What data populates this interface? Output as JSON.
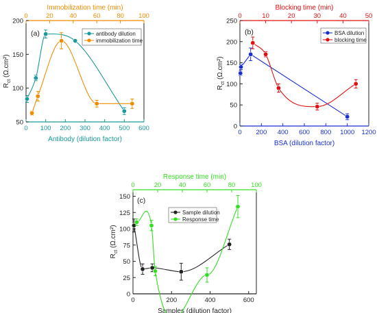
{
  "chart_data": [
    {
      "type": "scatter",
      "panel_label": "(a)",
      "colors": {
        "bottom": "#1a9a9a",
        "top": "#f08c00"
      },
      "xlabel": "Antibody  (dilution factor)",
      "x2label": "Immobilization time (min)",
      "ylabel": "R",
      "ylabel_sub": "ct",
      "ylabel_unit": " (Ω.cm²)",
      "xlim": [
        0,
        600
      ],
      "x2lim": [
        0,
        100
      ],
      "ylim": [
        50,
        200
      ],
      "xticks": [
        "0",
        "100",
        "200",
        "300",
        "400",
        "500",
        "600"
      ],
      "x2ticks": [
        "0",
        "20",
        "40",
        "60",
        "80",
        "100"
      ],
      "yticks": [
        "50",
        "100",
        "150",
        "200"
      ],
      "legend_position": "top-right",
      "series": [
        {
          "name": "antibody dilution",
          "axis": "bottom",
          "color": "#1a9a9a",
          "x": [
            5,
            50,
            100,
            250,
            500
          ],
          "y": [
            84,
            115,
            180,
            170,
            66
          ],
          "err": [
            5,
            4,
            6,
            2,
            5
          ]
        },
        {
          "name": "immobilization time",
          "axis": "top",
          "color": "#f08c00",
          "x": [
            5,
            10,
            30,
            60,
            90
          ],
          "y": [
            63,
            88,
            170,
            77,
            77
          ],
          "err": [
            3,
            7,
            12,
            5,
            7
          ]
        }
      ]
    },
    {
      "type": "scatter",
      "panel_label": "(b)",
      "colors": {
        "bottom": "#1a2fd0",
        "top": "#e01010"
      },
      "xlabel": "BSA (dilution factor)",
      "x2label": "Blocking time  (min)",
      "ylabel": "R",
      "ylabel_sub": "ct",
      "ylabel_unit": " (Ω.cm²)",
      "xlim": [
        0,
        1200
      ],
      "x2lim": [
        0,
        50
      ],
      "ylim": [
        0,
        250
      ],
      "xticks": [
        "0",
        "200",
        "400",
        "600",
        "800",
        "1000",
        "1200"
      ],
      "x2ticks": [
        "0",
        "10",
        "20",
        "30",
        "40",
        "50"
      ],
      "yticks": [
        "0",
        "50",
        "100",
        "150",
        "200",
        "250"
      ],
      "legend_position": "top-right",
      "series": [
        {
          "name": "BSA dilution",
          "axis": "bottom",
          "color": "#1a2fd0",
          "x": [
            5,
            10,
            100,
            1000
          ],
          "y": [
            125,
            140,
            170,
            22
          ],
          "err": [
            5,
            6,
            15,
            7
          ]
        },
        {
          "name": "blocking time",
          "axis": "top",
          "color": "#e01010",
          "x": [
            5,
            10,
            15,
            30,
            45
          ],
          "y": [
            197,
            170,
            90,
            46,
            100
          ],
          "err": [
            14,
            6,
            10,
            8,
            10
          ]
        }
      ]
    },
    {
      "type": "scatter",
      "panel_label": "(c)",
      "colors": {
        "bottom": "#222222",
        "top": "#33dd22"
      },
      "xlabel": "Samples (dilution factor)",
      "x2label": "Response time  (min)",
      "ylabel": "R",
      "ylabel_sub": "ct",
      "ylabel_unit": " (Ω.cm²)",
      "xlim": [
        0,
        640
      ],
      "x2lim": [
        0,
        100
      ],
      "ylim": [
        0,
        160
      ],
      "xticks": [
        "0",
        "200",
        "400",
        "600"
      ],
      "x2ticks": [
        "0",
        "20",
        "40",
        "60",
        "80",
        "100"
      ],
      "yticks": [
        "0",
        "25",
        "50",
        "75",
        "100",
        "125",
        "150"
      ],
      "legend_position": "top-center",
      "series": [
        {
          "name": "Sample dilution",
          "axis": "bottom",
          "color": "#222222",
          "x": [
            5,
            50,
            100,
            250,
            500
          ],
          "y": [
            105,
            38,
            40,
            34,
            76
          ],
          "err": [
            10,
            8,
            6,
            13,
            8
          ]
        },
        {
          "name": "Response time",
          "axis": "top",
          "color": "#33dd22",
          "x": [
            3,
            15,
            18,
            60,
            85
          ],
          "y": [
            110,
            105,
            35,
            29,
            134
          ],
          "err": [
            5,
            8,
            7,
            11,
            17
          ]
        }
      ]
    }
  ]
}
